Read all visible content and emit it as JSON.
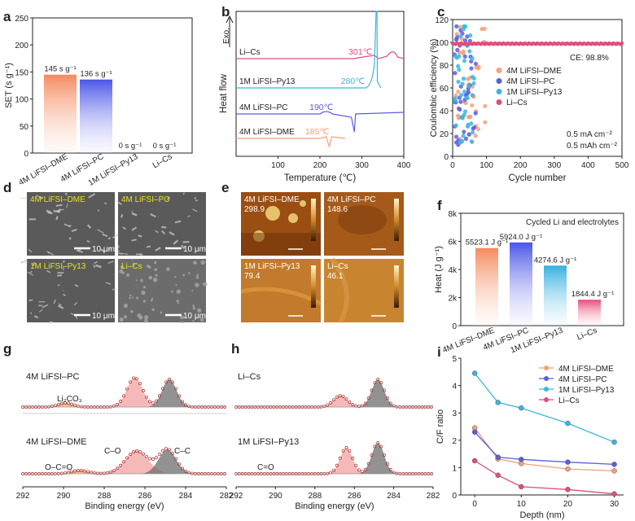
{
  "colors": {
    "dme": "#f4a07a",
    "pc": "#5b5ee0",
    "py13": "#3ab6e0",
    "lics": "#e24d7c",
    "axis": "#222222"
  },
  "panels": {
    "a": {
      "letter": "a"
    },
    "b": {
      "letter": "b"
    },
    "c": {
      "letter": "c"
    },
    "d": {
      "letter": "d"
    },
    "e": {
      "letter": "e"
    },
    "f": {
      "letter": "f"
    },
    "g": {
      "letter": "g"
    },
    "h": {
      "letter": "h"
    },
    "i": {
      "letter": "i"
    }
  },
  "chart_data": [
    {
      "id": "a",
      "type": "bar",
      "ylabel": "SET (s g⁻¹)",
      "ylim": [
        0,
        250
      ],
      "yticks": [
        0,
        50,
        100,
        150,
        200,
        250
      ],
      "categories": [
        "4M LiFSI–DME",
        "4M LiFSI–PC",
        "1M LiFSI–Py13",
        "Li–Cs"
      ],
      "values": [
        145,
        136,
        0,
        0
      ],
      "data_labels": [
        "145 s g⁻¹",
        "136 s g⁻¹",
        "0 s g⁻¹",
        "0 s g⁻¹"
      ]
    },
    {
      "id": "b",
      "type": "line",
      "xlabel": "Temperature (℃)",
      "ylabel": "Heat flow",
      "y_arrow_label": "Exo.",
      "xlim": [
        0,
        400
      ],
      "xticks": [
        100,
        200,
        300,
        400
      ],
      "series": [
        {
          "name": "Li–Cs",
          "peak_label": "301℃",
          "offset": 4,
          "peak_x": 301
        },
        {
          "name": "1M LiFSI–Py13",
          "peak_label": "280℃",
          "offset": 3,
          "peak_x": 280
        },
        {
          "name": "4M LiFSI–PC",
          "peak_label": "190℃",
          "offset": 2,
          "peak_x": 190
        },
        {
          "name": "4M LiFSI–DME",
          "peak_label": "185℃",
          "offset": 1,
          "peak_x": 185
        }
      ]
    },
    {
      "id": "c",
      "type": "scatter",
      "xlabel": "Cycle number",
      "ylabel": "Coulombic efficiency (%)",
      "xlim": [
        0,
        500
      ],
      "ylim": [
        0,
        120
      ],
      "xticks": [
        0,
        100,
        200,
        300,
        400,
        500
      ],
      "yticks": [
        0,
        20,
        40,
        60,
        80,
        100,
        120
      ],
      "series": [
        {
          "name": "4M LiFSI–DME"
        },
        {
          "name": "4M LiFSI–PC"
        },
        {
          "name": "1M LiFSI–Py13"
        },
        {
          "name": "Li–Cs"
        }
      ],
      "annotations": [
        "CE: 98.8%",
        "0.5 mA cm⁻²",
        "0.5 mAh cm⁻²"
      ],
      "licsCE": 98.8
    },
    {
      "id": "f",
      "type": "bar",
      "ylabel": "Heat (J g⁻¹)",
      "ylim": [
        0,
        8000
      ],
      "yticks": [
        0,
        2000,
        4000,
        6000,
        8000
      ],
      "ytick_labels": [
        "0",
        "2k",
        "4k",
        "6k",
        "8k"
      ],
      "categories": [
        "4M LiFSI–DME",
        "4M LiFSI–PC",
        "1M LiFSI–Py13",
        "Li–Cs"
      ],
      "values": [
        5523.1,
        5924.0,
        4274.6,
        1844.4
      ],
      "data_labels": [
        "5523.1 J g⁻¹",
        "5924.0 J g⁻¹",
        "4274.6 J g⁻¹",
        "1844.4 J g⁻¹"
      ],
      "annotation": "Cycled Li and electrolytes"
    },
    {
      "id": "g",
      "type": "line",
      "xlabel": "Binding energy (eV)",
      "xlim": [
        292,
        282
      ],
      "xticks": [
        292,
        290,
        288,
        286,
        284,
        282
      ],
      "spectra": [
        {
          "name": "4M LiFSI–PC",
          "peak_label": "Li₂CO₃"
        },
        {
          "name": "4M LiFSI–DME",
          "peak_labels": [
            "O–C=O",
            "C–O",
            "C–C"
          ]
        }
      ]
    },
    {
      "id": "h",
      "type": "line",
      "xlabel": "Binding energy (eV)",
      "xlim": [
        292,
        282
      ],
      "xticks": [
        292,
        290,
        288,
        286,
        284,
        282
      ],
      "spectra": [
        {
          "name": "Li–Cs"
        },
        {
          "name": "1M LiFSI–Py13",
          "peak_label": "C=O"
        }
      ]
    },
    {
      "id": "i",
      "type": "line",
      "xlabel": "Depth (nm)",
      "ylabel": "C/F ratio",
      "xlim": [
        -3,
        32
      ],
      "ylim": [
        0,
        5
      ],
      "xticks": [
        0,
        10,
        20,
        30
      ],
      "yticks": [
        0,
        1,
        2,
        3,
        4,
        5
      ],
      "x": [
        0,
        5,
        10,
        20,
        30
      ],
      "series": [
        {
          "name": "4M LiFSI–DME",
          "values": [
            2.45,
            1.32,
            1.15,
            0.95,
            0.88
          ]
        },
        {
          "name": "4M LiFSI–PC",
          "values": [
            2.3,
            1.38,
            1.3,
            1.2,
            1.12
          ]
        },
        {
          "name": "1M LiFSI–Py13",
          "values": [
            4.45,
            3.38,
            3.18,
            2.62,
            1.93
          ]
        },
        {
          "name": "Li–Cs",
          "values": [
            1.25,
            0.72,
            0.3,
            0.2,
            0.04
          ]
        }
      ]
    }
  ],
  "images": {
    "d": {
      "tiles": [
        {
          "label": "4M LiFSI–DME",
          "scale": "10 μm"
        },
        {
          "label": "4M LiFSI–PC",
          "scale": "10 μm"
        },
        {
          "label": "1M LiFSI–Py13",
          "scale": "10 μm"
        },
        {
          "label": "Li–Cs",
          "scale": "10 μm"
        }
      ]
    },
    "e": {
      "tiles": [
        {
          "label": "4M LiFSI–DME",
          "value": "298.9"
        },
        {
          "label": "4M LiFSI–PC",
          "value": "148.6"
        },
        {
          "label": "1M LiFSI–Py13",
          "value": "79.4"
        },
        {
          "label": "Li–Cs",
          "value": "46.1"
        }
      ]
    }
  }
}
